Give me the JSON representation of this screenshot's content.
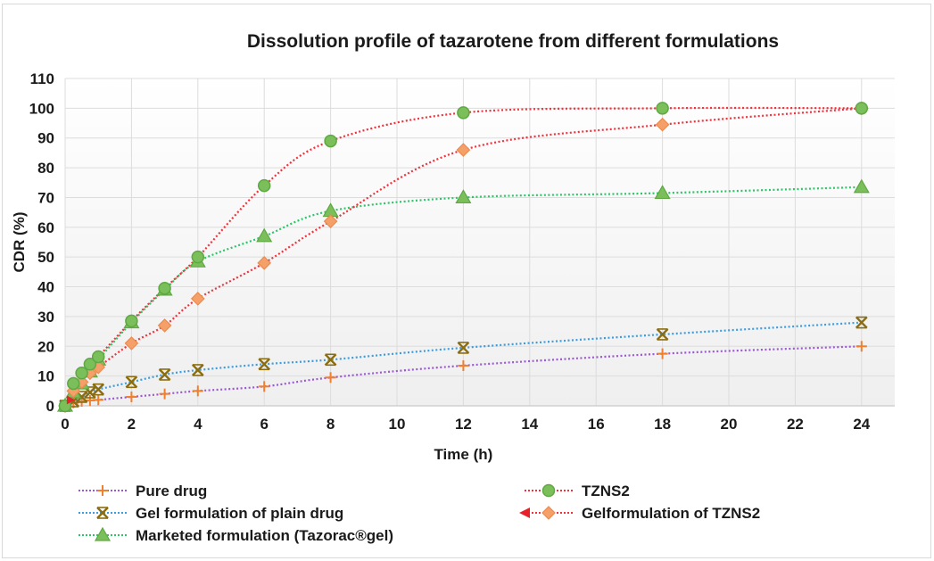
{
  "chart_data": {
    "type": "line",
    "title": "Dissolution profile of tazarotene from different formulations",
    "xlabel": "Time (h)",
    "ylabel": "CDR (%)",
    "xlim": [
      0,
      24
    ],
    "ylim": [
      0,
      110
    ],
    "xticks": [
      0,
      2,
      4,
      6,
      8,
      10,
      12,
      14,
      16,
      18,
      20,
      22,
      24
    ],
    "yticks": [
      0,
      10,
      20,
      30,
      40,
      50,
      60,
      70,
      80,
      90,
      100,
      110
    ],
    "grid": true,
    "legend_position": "bottom",
    "x": [
      0,
      0.25,
      0.5,
      0.75,
      1,
      2,
      3,
      4,
      6,
      8,
      12,
      18,
      24
    ],
    "series": [
      {
        "name": "Pure drug",
        "line_color": "#9b59d0",
        "marker": "plus",
        "marker_color": "#f07f2e",
        "values": [
          0,
          1,
          1.5,
          1.8,
          2,
          3,
          4,
          5,
          6.5,
          9.5,
          13.5,
          17.5,
          20
        ]
      },
      {
        "name": "Gel formulation of plain drug",
        "line_color": "#3b9ddd",
        "marker": "star",
        "marker_color": "#8b6d10",
        "values": [
          0,
          1.5,
          3,
          4.5,
          5.5,
          8,
          10.5,
          12,
          14,
          15.5,
          19.5,
          24,
          28
        ]
      },
      {
        "name": "TZNS2",
        "line_color": "#f0323c",
        "marker": "circle",
        "marker_color": "#7bbf5a",
        "values": [
          0,
          7.5,
          11,
          14,
          16.5,
          28.5,
          39.5,
          50,
          74,
          89,
          98.5,
          100,
          100
        ]
      },
      {
        "name": "Gelformulation of TZNS2",
        "line_color": "#f0323c",
        "marker": "diamond",
        "marker_color": "#f5a068",
        "values": [
          0,
          5,
          8,
          11,
          13,
          21,
          27,
          36,
          48,
          62,
          86,
          94.5,
          100
        ]
      },
      {
        "name": "Marketed formulation (Tazorac®gel)",
        "line_color": "#2ec46a",
        "marker": "triangle",
        "marker_color": "#7bbf5a",
        "values": [
          0,
          4.5,
          7.5,
          11.5,
          15.5,
          28,
          39,
          48.5,
          57,
          65.5,
          70,
          71.5,
          73.5
        ]
      }
    ],
    "legend_order": [
      0,
      2,
      1,
      3,
      4
    ]
  }
}
